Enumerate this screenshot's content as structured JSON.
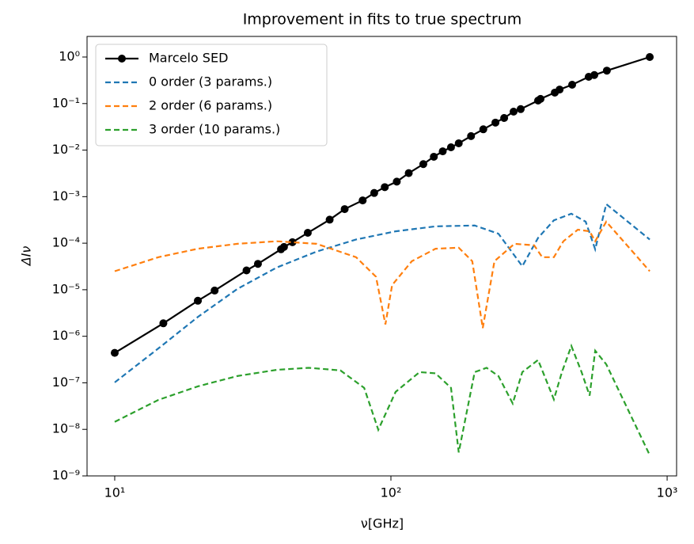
{
  "chart_data": {
    "type": "line",
    "title": "Improvement in fits to true spectrum",
    "x_label": "ν[GHz]",
    "y_label": "ΔIν",
    "log_x": true,
    "log_y": true,
    "grid": false,
    "legend": "upper left",
    "xlim": [
      7.94,
      1082
    ],
    "ylim": [
      1e-09,
      2.77
    ],
    "xticks": [
      {
        "value": 10,
        "label": "10¹"
      },
      {
        "value": 100,
        "label": "10²"
      },
      {
        "value": 1000,
        "label": "10³"
      }
    ],
    "yticks": [
      {
        "value": 1e-09,
        "label": "10⁻⁹"
      },
      {
        "value": 1e-08,
        "label": "10⁻⁸"
      },
      {
        "value": 1e-07,
        "label": "10⁻⁷"
      },
      {
        "value": 1e-06,
        "label": "10⁻⁶"
      },
      {
        "value": 1e-05,
        "label": "10⁻⁵"
      },
      {
        "value": 0.0001,
        "label": "10⁻⁴"
      },
      {
        "value": 0.001,
        "label": "10⁻³"
      },
      {
        "value": 0.01,
        "label": "10⁻²"
      },
      {
        "value": 0.1,
        "label": "10⁻¹"
      },
      {
        "value": 1,
        "label": "10⁰"
      }
    ],
    "series": [
      {
        "name": "Marcelo SED",
        "color": "#000000",
        "marker": true,
        "dashed": false,
        "x": [
          10,
          15,
          20,
          23,
          30,
          33,
          40,
          41,
          44,
          50,
          60,
          68,
          79,
          87,
          95,
          105,
          116,
          131,
          143,
          154,
          165,
          176,
          195,
          216,
          239,
          257,
          278,
          295,
          341,
          348,
          392,
          408,
          453,
          520,
          545,
          605,
          865
        ],
        "values": [
          4.4e-07,
          1.9e-06,
          5.8e-06,
          9.6e-06,
          2.6e-05,
          3.6e-05,
          7.4e-05,
          8.3e-05,
          0.000105,
          0.000167,
          0.00032,
          0.00054,
          0.00083,
          0.0012,
          0.0016,
          0.0021,
          0.0032,
          0.005,
          0.0072,
          0.0094,
          0.0115,
          0.014,
          0.02,
          0.028,
          0.039,
          0.049,
          0.067,
          0.076,
          0.116,
          0.126,
          0.172,
          0.2,
          0.254,
          0.376,
          0.41,
          0.51,
          1.0
        ]
      },
      {
        "name": "0 order (3 params.)",
        "color": "#1f77b4",
        "marker": false,
        "dashed": true,
        "x": [
          10,
          14.4,
          20,
          27.8,
          38.6,
          53.8,
          74.8,
          104,
          145,
          201,
          245,
          299,
          341,
          389,
          450,
          507,
          549,
          602,
          865
        ],
        "values": [
          1.02e-07,
          5.5e-07,
          2.6e-06,
          1.04e-05,
          3e-05,
          6.6e-05,
          0.00012,
          0.00018,
          0.00023,
          0.00024,
          0.00016,
          3.2e-05,
          0.00013,
          0.00031,
          0.00043,
          0.00029,
          7.4e-05,
          0.00069,
          0.00012
        ]
      },
      {
        "name": "2 order (6 params.)",
        "color": "#ff7f0e",
        "marker": false,
        "dashed": true,
        "x": [
          10,
          14.4,
          20,
          27.8,
          38.6,
          53.8,
          74.8,
          88.3,
          95.5,
          101,
          119,
          145,
          176,
          197,
          215,
          237,
          280,
          330,
          353,
          389,
          421,
          475,
          524,
          549,
          602,
          865
        ],
        "values": [
          2.5e-05,
          5e-05,
          7.6e-05,
          9.7e-05,
          0.00011,
          9.7e-05,
          5e-05,
          1.9e-05,
          1.8e-06,
          1.26e-05,
          4.1e-05,
          7.6e-05,
          8e-05,
          4.1e-05,
          1.5e-06,
          4.1e-05,
          9.7e-05,
          9e-05,
          5e-05,
          5e-05,
          0.00011,
          0.000195,
          0.00018,
          0.00011,
          0.00029,
          2.5e-05
        ]
      },
      {
        "name": "3 order (10 params.)",
        "color": "#2ca02c",
        "marker": false,
        "dashed": true,
        "x": [
          10,
          14.4,
          20,
          27.8,
          38.6,
          50.4,
          65.6,
          80,
          90,
          104,
          127,
          145,
          165,
          176,
          201,
          222,
          245,
          276,
          299,
          341,
          389,
          416,
          450,
          490,
          524,
          549,
          602,
          865
        ],
        "values": [
          1.45e-08,
          4.3e-08,
          8.4e-08,
          1.4e-07,
          1.9e-07,
          2.1e-07,
          1.85e-07,
          7.8e-08,
          9.8e-09,
          6.4e-08,
          1.7e-07,
          1.6e-07,
          7.8e-08,
          3.2e-09,
          1.7e-07,
          2.1e-07,
          1.4e-07,
          3.6e-08,
          1.7e-07,
          3.1e-07,
          4.4e-08,
          1.7e-07,
          6.2e-07,
          1.7e-07,
          5.3e-08,
          4.9e-07,
          2.5e-07,
          2.8e-09
        ]
      }
    ]
  }
}
